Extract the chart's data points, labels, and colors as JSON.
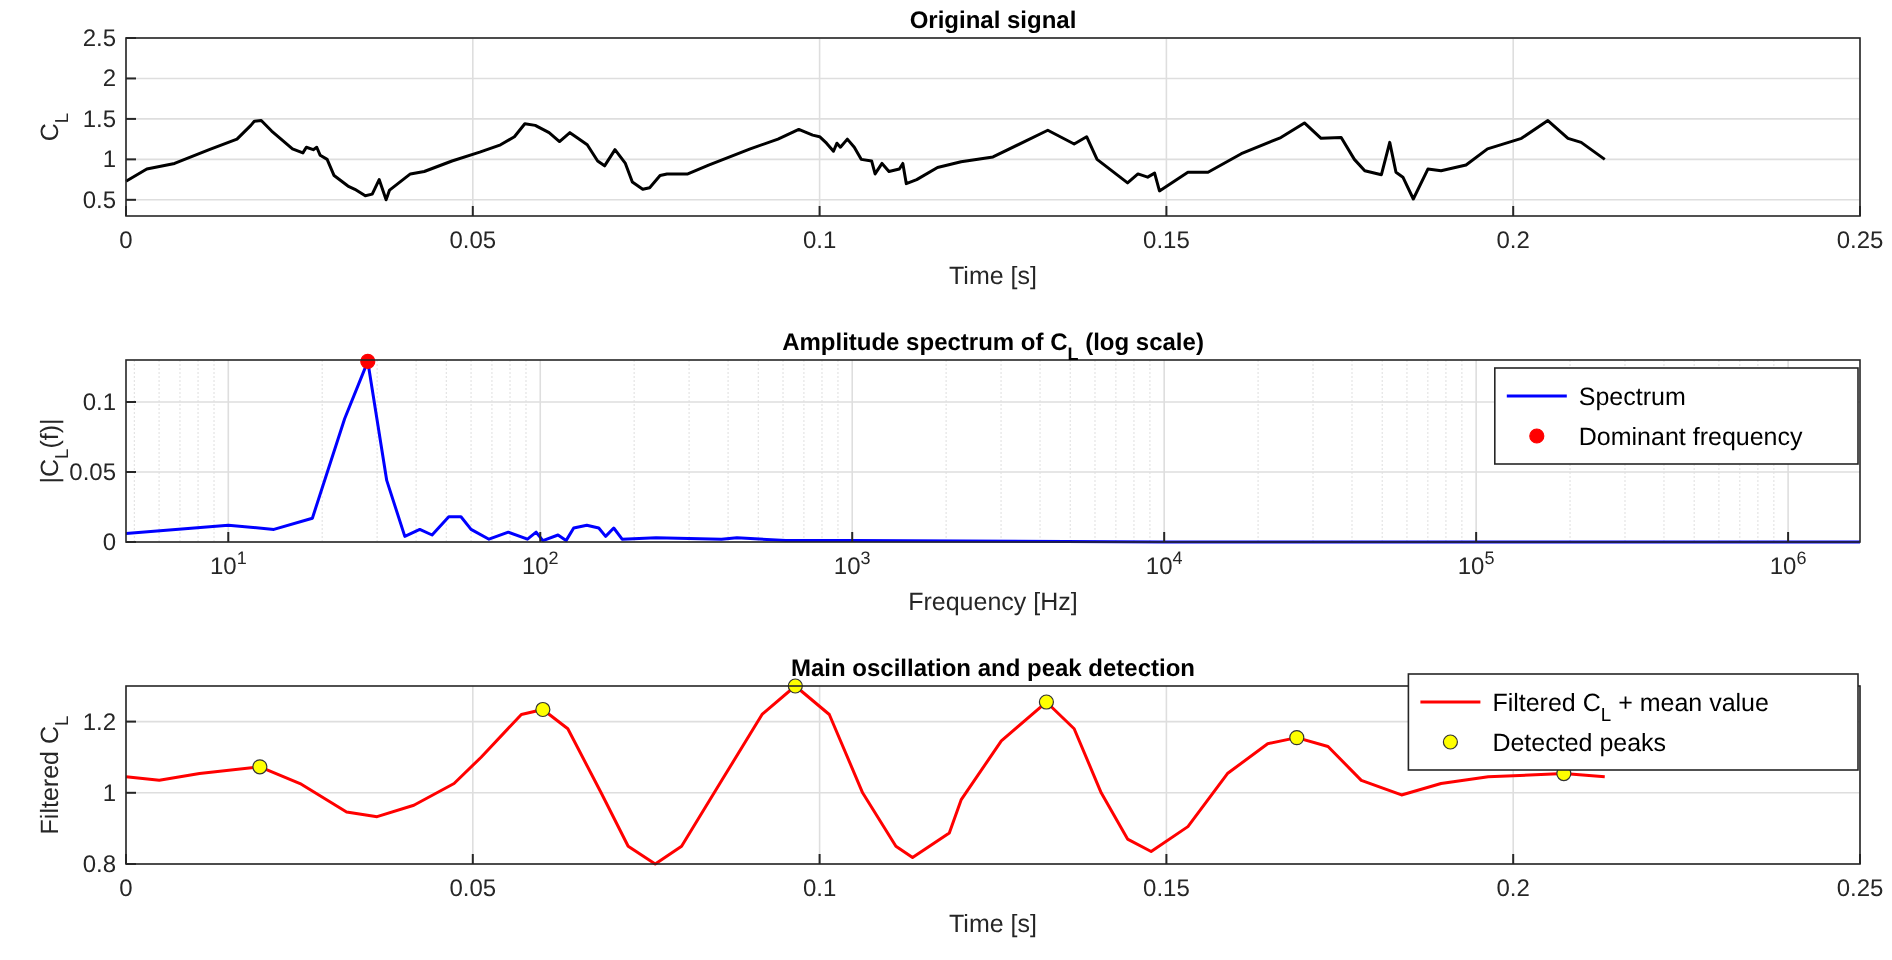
{
  "chart_data": [
    {
      "type": "line",
      "title": "Original signal",
      "xlabel": "Time [s]",
      "ylabel": "C$_{L}$",
      "xlim": [
        0,
        0.25
      ],
      "ylim": [
        0.3,
        2.5
      ],
      "xticks": [
        0,
        0.05,
        0.1,
        0.15,
        0.2,
        0.25
      ],
      "yticks": [
        0.5,
        1,
        1.5,
        2,
        2.5
      ],
      "grid": true,
      "series": [
        {
          "color": "#000000",
          "x": [
            0,
            0.003,
            0.007,
            0.012,
            0.016,
            0.018,
            0.0185,
            0.0195,
            0.021,
            0.024,
            0.0255,
            0.026,
            0.027,
            0.0275,
            0.028,
            0.029,
            0.03,
            0.032,
            0.033,
            0.0345,
            0.0355,
            0.0365,
            0.0375,
            0.038,
            0.041,
            0.043,
            0.047,
            0.051,
            0.054,
            0.056,
            0.0575,
            0.059,
            0.061,
            0.0625,
            0.064,
            0.065,
            0.0665,
            0.068,
            0.069,
            0.0705,
            0.072,
            0.073,
            0.0745,
            0.0755,
            0.077,
            0.078,
            0.081,
            0.084,
            0.09,
            0.094,
            0.097,
            0.099,
            0.1,
            0.101,
            0.102,
            0.1025,
            0.103,
            0.104,
            0.105,
            0.106,
            0.1075,
            0.108,
            0.109,
            0.11,
            0.1115,
            0.112,
            0.1125,
            0.114,
            0.117,
            0.1204,
            0.125,
            0.1329,
            0.1367,
            0.1385,
            0.14,
            0.1444,
            0.1459,
            0.1473,
            0.1483,
            0.149,
            0.1531,
            0.156,
            0.1608,
            0.1665,
            0.1699,
            0.1723,
            0.1752,
            0.1771,
            0.1786,
            0.181,
            0.1822,
            0.1831,
            0.1841,
            0.1856,
            0.1877,
            0.1896,
            0.1932,
            0.1963,
            0.2012,
            0.205,
            0.2079,
            0.2098,
            0.2132
          ],
          "values": [
            0.73,
            0.88,
            0.95,
            1.12,
            1.25,
            1.42,
            1.47,
            1.48,
            1.35,
            1.13,
            1.08,
            1.15,
            1.12,
            1.15,
            1.05,
            1.0,
            0.8,
            0.67,
            0.63,
            0.55,
            0.57,
            0.75,
            0.5,
            0.62,
            0.82,
            0.85,
            0.98,
            1.09,
            1.18,
            1.28,
            1.44,
            1.42,
            1.33,
            1.22,
            1.33,
            1.27,
            1.18,
            0.98,
            0.92,
            1.12,
            0.95,
            0.72,
            0.63,
            0.65,
            0.8,
            0.82,
            0.82,
            0.93,
            1.13,
            1.25,
            1.37,
            1.3,
            1.28,
            1.2,
            1.1,
            1.2,
            1.15,
            1.25,
            1.15,
            1.0,
            0.98,
            0.82,
            0.95,
            0.85,
            0.88,
            0.95,
            0.7,
            0.75,
            0.9,
            0.97,
            1.03,
            1.36,
            1.19,
            1.28,
            1.0,
            0.71,
            0.82,
            0.78,
            0.83,
            0.61,
            0.84,
            0.84,
            1.07,
            1.27,
            1.45,
            1.26,
            1.27,
            1.0,
            0.86,
            0.81,
            1.21,
            0.84,
            0.78,
            0.51,
            0.88,
            0.86,
            0.93,
            1.13,
            1.26,
            1.48,
            1.26,
            1.21,
            1.0
          ]
        }
      ]
    },
    {
      "type": "line",
      "title": "Amplitude spectrum of C$_{L}$ (log scale)",
      "xlabel": "Frequency [Hz]",
      "ylabel": "|C$_{L}$(f)|",
      "log": "x",
      "xlim": [
        4.7,
        1700000
      ],
      "ylim": [
        0,
        0.13
      ],
      "xticks": [
        {
          "value": 10,
          "label": "10$^{1}$"
        },
        {
          "value": 100,
          "label": "10$^{2}$"
        },
        {
          "value": 1000,
          "label": "10$^{3}$"
        },
        {
          "value": 10000,
          "label": "10$^{4}$"
        },
        {
          "value": 100000,
          "label": "10$^{5}$"
        },
        {
          "value": 1000000,
          "label": "10$^{6}$"
        }
      ],
      "yticks": [
        0,
        0.05,
        0.1
      ],
      "grid": true,
      "legend": "top right",
      "series": [
        {
          "name": "Spectrum",
          "type": "line",
          "color": "#0000ff",
          "x": [
            4.7,
            10,
            14,
            18.6,
            23.6,
            28,
            32.2,
            36.8,
            41.1,
            45,
            50.9,
            55.7,
            60,
            68.5,
            79,
            91,
            97,
            102,
            114,
            121,
            128,
            141,
            154,
            162,
            172,
            183,
            235,
            381,
            427,
            613,
            1000,
            10000,
            100000,
            1700000
          ],
          "values": [
            0.006,
            0.012,
            0.009,
            0.017,
            0.088,
            0.129,
            0.044,
            0.004,
            0.009,
            0.005,
            0.018,
            0.018,
            0.009,
            0.002,
            0.007,
            0.002,
            0.007,
            0.001,
            0.005,
            0.001,
            0.01,
            0.012,
            0.01,
            0.004,
            0.01,
            0.002,
            0.003,
            0.002,
            0.003,
            0.001,
            0.001,
            0,
            0,
            0
          ]
        },
        {
          "name": "Dominant frequency",
          "type": "scatter",
          "marker": "circle",
          "color": "#ff0000",
          "x": [
            28
          ],
          "values": [
            0.129
          ]
        }
      ]
    },
    {
      "type": "line",
      "title": "Main oscillation and peak detection",
      "xlabel": "Time [s]",
      "ylabel": "Filtered C$_{L}$",
      "xlim": [
        0,
        0.25
      ],
      "ylim": [
        0.8,
        1.3
      ],
      "xticks": [
        0,
        0.05,
        0.1,
        0.15,
        0.2,
        0.25
      ],
      "yticks": [
        0.8,
        1,
        1.2
      ],
      "grid": true,
      "legend": "top right",
      "series": [
        {
          "name": "Filtered C$_{L}$ + mean value",
          "type": "line",
          "color": "#ff0000",
          "x": [
            0,
            0.0048,
            0.0106,
            0.0193,
            0.0251,
            0.0318,
            0.0362,
            0.0415,
            0.0473,
            0.0512,
            0.057,
            0.0601,
            0.0637,
            0.0685,
            0.0724,
            0.0763,
            0.0801,
            0.0859,
            0.0917,
            0.0965,
            0.1014,
            0.1062,
            0.111,
            0.1134,
            0.1187,
            0.1204,
            0.1262,
            0.1327,
            0.1367,
            0.1406,
            0.1444,
            0.1478,
            0.1531,
            0.1588,
            0.1646,
            0.1688,
            0.1733,
            0.1781,
            0.1839,
            0.1896,
            0.1964,
            0.2073,
            0.2132
          ],
          "values": [
            1.045,
            1.035,
            1.054,
            1.073,
            1.026,
            0.946,
            0.933,
            0.965,
            1.026,
            1.1,
            1.22,
            1.234,
            1.18,
            1.0,
            0.85,
            0.8,
            0.85,
            1.035,
            1.22,
            1.3,
            1.22,
            1.0,
            0.85,
            0.818,
            0.887,
            0.98,
            1.146,
            1.255,
            1.18,
            1.0,
            0.87,
            0.835,
            0.905,
            1.054,
            1.138,
            1.155,
            1.13,
            1.035,
            0.994,
            1.026,
            1.045,
            1.054,
            1.045
          ]
        },
        {
          "name": "Detected peaks",
          "type": "scatter",
          "marker": "circle",
          "color": "#ffff00",
          "x": [
            0.0193,
            0.0601,
            0.0965,
            0.1327,
            0.1688,
            0.2073
          ],
          "values": [
            1.073,
            1.234,
            1.3,
            1.255,
            1.155,
            1.054
          ]
        }
      ]
    }
  ]
}
